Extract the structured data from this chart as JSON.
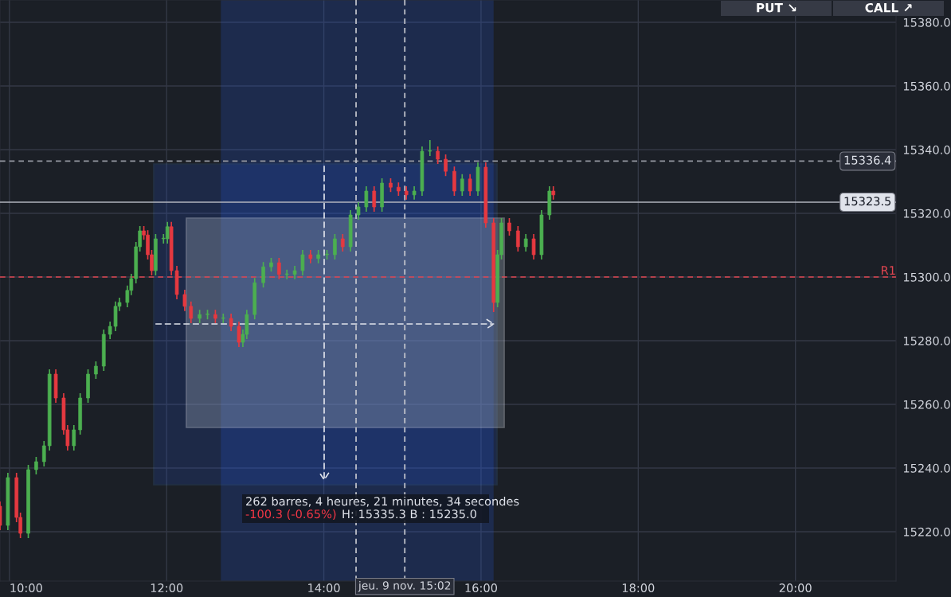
{
  "chart_data": {
    "type": "candlestick",
    "x": [
      9.88,
      9.98,
      10.09,
      10.14,
      10.24,
      10.34,
      10.44,
      10.51,
      10.59,
      10.69,
      10.74,
      10.82,
      10.9,
      11.0,
      11.1,
      11.2,
      11.28,
      11.35,
      11.4,
      11.5,
      11.55,
      11.61,
      11.66,
      11.71,
      11.76,
      11.81,
      11.86,
      11.96,
      12.01,
      12.06,
      12.13,
      12.23,
      12.31,
      12.42,
      12.52,
      12.62,
      12.72,
      12.82,
      12.92,
      12.97,
      13.02,
      13.12,
      13.23,
      13.33,
      13.43,
      13.53,
      13.63,
      13.73,
      13.83,
      13.93,
      14.04,
      14.14,
      14.24,
      14.34,
      14.44,
      14.54,
      14.64,
      14.74,
      14.85,
      14.95,
      15.05,
      15.15,
      15.25,
      15.35,
      15.45,
      15.55,
      15.66,
      15.76,
      15.86,
      15.96,
      16.06,
      16.16,
      16.21,
      16.26,
      16.36,
      16.47,
      16.57,
      16.67,
      16.77,
      16.87,
      16.92
    ],
    "ohlc": [
      [
        15228,
        15229.5,
        15220.5,
        15222
      ],
      [
        15222,
        15238.5,
        15220.5,
        15237
      ],
      [
        15237,
        15238.5,
        15223,
        15224.5
      ],
      [
        15224.5,
        15226,
        15218,
        15219.5
      ],
      [
        15219.5,
        15241,
        15218,
        15239.5
      ],
      [
        15239.5,
        15243.5,
        15238,
        15242
      ],
      [
        15242,
        15248.5,
        15240.5,
        15247
      ],
      [
        15247,
        15271,
        15245.5,
        15269.5
      ],
      [
        15269.5,
        15271,
        15260.5,
        15262
      ],
      [
        15262,
        15263.5,
        15250.5,
        15252
      ],
      [
        15252,
        15253.5,
        15245.5,
        15247
      ],
      [
        15247,
        15253.5,
        15245.5,
        15252
      ],
      [
        15252,
        15263.5,
        15250.5,
        15262
      ],
      [
        15262,
        15271,
        15260.5,
        15269.5
      ],
      [
        15269.5,
        15273.5,
        15268,
        15272
      ],
      [
        15272,
        15283.5,
        15270.5,
        15282
      ],
      [
        15282,
        15286,
        15280.5,
        15284.5
      ],
      [
        15284.5,
        15292.3,
        15283,
        15290.8
      ],
      [
        15290.8,
        15293.5,
        15289.3,
        15292
      ],
      [
        15292,
        15297.3,
        15290.5,
        15295.8
      ],
      [
        15295.8,
        15301,
        15294.3,
        15299.5
      ],
      [
        15299.5,
        15311,
        15298,
        15309.5
      ],
      [
        15309.5,
        15316,
        15308,
        15314.5
      ],
      [
        15314.5,
        15316,
        15311.7,
        15313.2
      ],
      [
        15313.2,
        15314.7,
        15305.5,
        15307
      ],
      [
        15307,
        15308.5,
        15300.5,
        15302
      ],
      [
        15302,
        15313.5,
        15300.5,
        15312
      ],
      [
        15312,
        15313.5,
        15310.5,
        15312
      ],
      [
        15312,
        15317.3,
        15310.5,
        15315.8
      ],
      [
        15315.8,
        15317.3,
        15300.5,
        15302
      ],
      [
        15302,
        15303.5,
        15293,
        15294.5
      ],
      [
        15294.5,
        15296,
        15289.3,
        15290.8
      ],
      [
        15290.8,
        15292.3,
        15285.5,
        15287
      ],
      [
        15287,
        15289.7,
        15285.5,
        15288.2
      ],
      [
        15288.2,
        15289.7,
        15286.7,
        15288.2
      ],
      [
        15288.2,
        15289.7,
        15285.5,
        15287
      ],
      [
        15287,
        15288.5,
        15285.5,
        15287
      ],
      [
        15287,
        15288.5,
        15283,
        15284.5
      ],
      [
        15284.5,
        15286,
        15278,
        15279.5
      ],
      [
        15279.5,
        15283.5,
        15278,
        15282
      ],
      [
        15282,
        15289.7,
        15280.5,
        15288.2
      ],
      [
        15288.2,
        15299.7,
        15286.7,
        15298.2
      ],
      [
        15298.2,
        15304.7,
        15296.7,
        15303.2
      ],
      [
        15303.2,
        15306,
        15301.7,
        15304.5
      ],
      [
        15304.5,
        15306,
        15299.3,
        15300.8
      ],
      [
        15300.8,
        15302.3,
        15299.3,
        15300.8
      ],
      [
        15300.8,
        15303.5,
        15299.3,
        15302
      ],
      [
        15302,
        15308.5,
        15300.5,
        15307
      ],
      [
        15307,
        15308.5,
        15304.3,
        15305.8
      ],
      [
        15305.8,
        15308.5,
        15304.3,
        15307
      ],
      [
        15307,
        15308.5,
        15305.5,
        15307
      ],
      [
        15307,
        15313.5,
        15305.5,
        15312
      ],
      [
        15312,
        15313.5,
        15308,
        15309.5
      ],
      [
        15309.5,
        15321,
        15308,
        15319.5
      ],
      [
        15319.5,
        15323.5,
        15318,
        15322
      ],
      [
        15322,
        15328.5,
        15320.5,
        15327
      ],
      [
        15327,
        15328.5,
        15320.5,
        15322
      ],
      [
        15322,
        15331,
        15320.5,
        15329.5
      ],
      [
        15329.5,
        15331,
        15326.7,
        15328.2
      ],
      [
        15328.2,
        15329.7,
        15325.5,
        15327
      ],
      [
        15327,
        15328.5,
        15324.3,
        15325.8
      ],
      [
        15325.8,
        15328.5,
        15324.3,
        15327
      ],
      [
        15327,
        15341,
        15325.5,
        15339.5
      ],
      [
        15339.5,
        15343,
        15338,
        15339.5
      ],
      [
        15339.5,
        15341,
        15335.5,
        15337
      ],
      [
        15337,
        15338.5,
        15331.7,
        15333.2
      ],
      [
        15333.2,
        15334.7,
        15325.5,
        15327
      ],
      [
        15327,
        15332.3,
        15325.5,
        15330.8
      ],
      [
        15330.8,
        15332.3,
        15325.5,
        15327
      ],
      [
        15327,
        15336,
        15325.5,
        15334.5
      ],
      [
        15334.5,
        15336,
        15315.5,
        15317
      ],
      [
        15317,
        15318.5,
        15289,
        15292
      ],
      [
        15292,
        15308.5,
        15290.5,
        15307
      ],
      [
        15307,
        15318.5,
        15305.5,
        15317
      ],
      [
        15317,
        15318.5,
        15313,
        15314.5
      ],
      [
        15314.5,
        15316,
        15308,
        15309.5
      ],
      [
        15309.5,
        15313.5,
        15308,
        15312
      ],
      [
        15312,
        15313.5,
        15305.5,
        15307
      ],
      [
        15307,
        15321,
        15305.5,
        15319.5
      ],
      [
        15319.5,
        15328.5,
        15318,
        15327
      ],
      [
        15327,
        15328.5,
        15324.3,
        15325.8
      ]
    ],
    "xlim": [
      9.88,
      21.28
    ],
    "ylim": [
      15204.5,
      15387
    ],
    "xticks": [
      {
        "value": 10,
        "label": "10:00"
      },
      {
        "value": 12,
        "label": "12:00"
      },
      {
        "value": 14,
        "label": "14:00"
      },
      {
        "value": 16,
        "label": "16:00"
      },
      {
        "value": 18,
        "label": "18:00"
      },
      {
        "value": 20,
        "label": "20:00"
      }
    ],
    "yticks": [
      {
        "value": 15220,
        "label": "15220.0"
      },
      {
        "value": 15240,
        "label": "15240.0"
      },
      {
        "value": 15260,
        "label": "15260.0"
      },
      {
        "value": 15280,
        "label": "15280.0"
      },
      {
        "value": 15300,
        "label": "15300.0"
      },
      {
        "value": 15320,
        "label": "15320.0"
      },
      {
        "value": 15340,
        "label": "15340.0"
      },
      {
        "value": 15360,
        "label": "15360.0"
      },
      {
        "value": 15380,
        "label": "15380.0"
      }
    ],
    "grid": true,
    "ref_lines": [
      {
        "axis": "y",
        "value": 15336.4,
        "label": "15336.4",
        "color": "#9598a1",
        "line_style": "dashed"
      },
      {
        "axis": "y",
        "value": 15323.5,
        "label": "15323.5",
        "color": "#b2b5be",
        "line_style": "solid"
      },
      {
        "axis": "y",
        "value": 15300,
        "label": "R1",
        "color": "#e04550",
        "line_style": "dashed"
      },
      {
        "axis": "x",
        "value": 14.41,
        "label": null,
        "color": "#c8cad0",
        "line_style": "dashed"
      },
      {
        "axis": "x",
        "value": 15.03,
        "label": "jeu. 9 nov. 15:02",
        "color": "#c8cad0",
        "line_style": "dashed"
      }
    ],
    "bands": [
      {
        "axis": "x",
        "from": 12.69,
        "to": 16.16,
        "label": null,
        "color": "#2962ff"
      }
    ],
    "annotations": [
      "262 barres, 4 heures, 21 minutes, 34 secondes",
      "-100.3 (-0.65%)",
      "H: 15335.3 B : 15235.0",
      "PUT ↘",
      "CALL ↗"
    ]
  }
}
